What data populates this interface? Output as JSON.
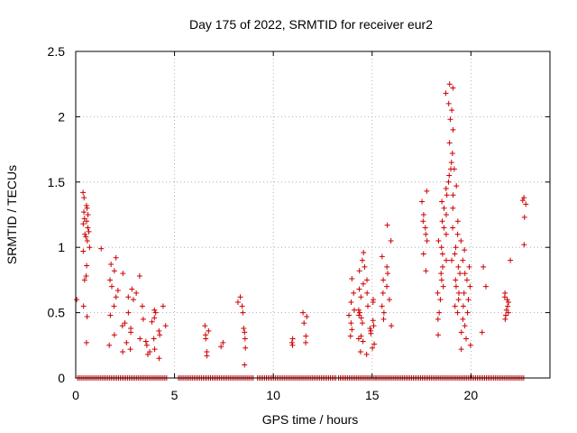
{
  "chart_data": {
    "type": "scatter",
    "title": "Day 175 of 2022, SRMTID for receiver eur2",
    "xlabel": "GPS time / hours",
    "ylabel": "SRMTID / TECUs",
    "xlim": [
      0,
      24
    ],
    "ylim": [
      0,
      2.5
    ],
    "xticks": [
      0,
      5,
      10,
      15,
      20
    ],
    "xtick_labels": [
      "0",
      "5",
      "10",
      "15",
      "20"
    ],
    "yticks": [
      0,
      0.5,
      1,
      1.5,
      2,
      2.5
    ],
    "ytick_labels": [
      "0",
      "0.5",
      "1",
      "1.5",
      "2",
      "2.5"
    ],
    "grid": true,
    "marker": "plus",
    "series": [
      {
        "name": "SRMTID",
        "color": "#cc0000",
        "clusters": [
          {
            "x_range": [
              0.35,
              0.75
            ],
            "y": [
              0.27,
              0.47,
              0.55,
              0.75,
              0.78,
              0.86,
              0.97,
              1.0,
              1.05,
              1.08,
              1.1,
              1.12,
              1.15,
              1.18,
              1.2,
              1.22,
              1.25,
              1.27,
              1.3,
              1.32,
              1.38,
              1.42
            ]
          },
          {
            "x_range": [
              1.1,
              1.3
            ],
            "y": [
              0.99
            ]
          },
          {
            "x_range": [
              1.6,
              2.4
            ],
            "y": [
              0.2,
              0.25,
              0.33,
              0.4,
              0.48,
              0.55,
              0.62,
              0.67,
              0.7,
              0.75,
              0.8,
              0.82,
              0.87,
              0.92
            ]
          },
          {
            "x_range": [
              2.4,
              3.5
            ],
            "y": [
              0.22,
              0.27,
              0.3,
              0.35,
              0.38,
              0.42,
              0.45,
              0.5,
              0.55,
              0.6,
              0.62,
              0.65,
              0.68,
              0.78
            ]
          },
          {
            "x_range": [
              3.5,
              4.6
            ],
            "y": [
              0.15,
              0.18,
              0.2,
              0.22,
              0.25,
              0.28,
              0.3,
              0.33,
              0.36,
              0.4,
              0.43,
              0.46,
              0.5,
              0.52,
              0.55
            ]
          },
          {
            "x_range": [
              6.5,
              6.8
            ],
            "y": [
              0.17,
              0.2,
              0.3,
              0.33,
              0.36,
              0.4
            ]
          },
          {
            "x_range": [
              7.3,
              7.5
            ],
            "y": [
              0.24,
              0.27
            ]
          },
          {
            "x_range": [
              8.2,
              8.6
            ],
            "y": [
              0.1,
              0.23,
              0.3,
              0.35,
              0.38,
              0.5,
              0.55,
              0.58,
              0.62
            ]
          },
          {
            "x_range": [
              10.9,
              11.1
            ],
            "y": [
              0.25,
              0.27,
              0.3
            ]
          },
          {
            "x_range": [
              11.5,
              11.7
            ],
            "y": [
              0.27,
              0.32,
              0.42,
              0.47,
              0.5
            ]
          },
          {
            "x_range": [
              13.8,
              14.1
            ],
            "y": [
              0.32,
              0.37,
              0.42,
              0.48,
              0.52,
              0.58,
              0.65,
              0.76
            ]
          },
          {
            "x_range": [
              14.3,
              15.2
            ],
            "y": [
              0.18,
              0.2,
              0.23,
              0.26,
              0.28,
              0.3,
              0.32,
              0.34,
              0.36,
              0.38,
              0.4,
              0.42,
              0.44,
              0.46,
              0.48,
              0.5,
              0.52,
              0.55,
              0.58,
              0.6,
              0.62,
              0.65,
              0.68,
              0.72,
              0.75,
              0.82,
              0.85,
              0.9,
              0.96
            ]
          },
          {
            "x_range": [
              15.5,
              16.1
            ],
            "y": [
              0.4,
              0.45,
              0.5,
              0.55,
              0.6,
              0.65,
              0.7,
              0.75,
              0.8,
              0.85,
              0.93,
              1.05,
              1.17
            ]
          },
          {
            "x_range": [
              17.5,
              17.8
            ],
            "y": [
              0.82,
              0.95,
              1.05,
              1.1,
              1.15,
              1.2,
              1.25,
              1.35,
              1.43
            ]
          },
          {
            "x_range": [
              18.3,
              18.8
            ],
            "y": [
              0.33,
              0.45,
              0.5,
              0.6,
              0.65,
              0.7,
              0.75,
              0.8,
              0.85,
              0.9,
              0.95,
              1.0,
              1.05,
              1.1,
              1.15,
              1.2,
              1.25,
              1.3,
              1.35,
              1.4,
              1.45
            ]
          },
          {
            "x_range": [
              18.7,
              19.1
            ],
            "y": [
              1.5,
              1.55,
              1.6,
              1.65,
              1.72,
              1.8,
              1.9,
              1.98,
              2.05,
              2.1,
              2.18,
              2.22,
              2.25
            ]
          },
          {
            "x_range": [
              19.0,
              19.5
            ],
            "y": [
              0.5,
              0.55,
              0.6,
              0.65,
              0.7,
              0.75,
              0.8,
              0.85,
              0.9,
              0.95,
              1.0,
              1.05,
              1.1,
              1.15,
              1.2,
              1.3,
              1.4,
              1.47,
              1.6
            ]
          },
          {
            "x_range": [
              19.5,
              20.0
            ],
            "y": [
              0.22,
              0.25,
              0.3,
              0.35,
              0.4,
              0.45,
              0.5,
              0.55,
              0.6,
              0.65,
              0.7,
              0.75,
              0.8,
              0.85,
              0.9,
              0.98
            ]
          },
          {
            "x_range": [
              20.4,
              20.8
            ],
            "y": [
              0.35,
              0.7,
              0.85
            ]
          },
          {
            "x_range": [
              21.7,
              22.1
            ],
            "y": [
              0.45,
              0.48,
              0.5,
              0.52,
              0.55,
              0.58,
              0.6,
              0.62,
              0.65,
              0.9
            ]
          },
          {
            "x_range": [
              22.6,
              22.8
            ],
            "y": [
              1.02,
              1.23,
              1.33,
              1.36,
              1.38
            ]
          }
        ],
        "isolated_points": [
          {
            "x": 0.05,
            "y": 0.6
          }
        ],
        "zero_baseline_segments": [
          [
            0.1,
            4.6
          ],
          [
            5.2,
            9.0
          ],
          [
            9.2,
            13.2
          ],
          [
            13.3,
            15.2
          ],
          [
            15.2,
            22.7
          ]
        ]
      }
    ]
  }
}
